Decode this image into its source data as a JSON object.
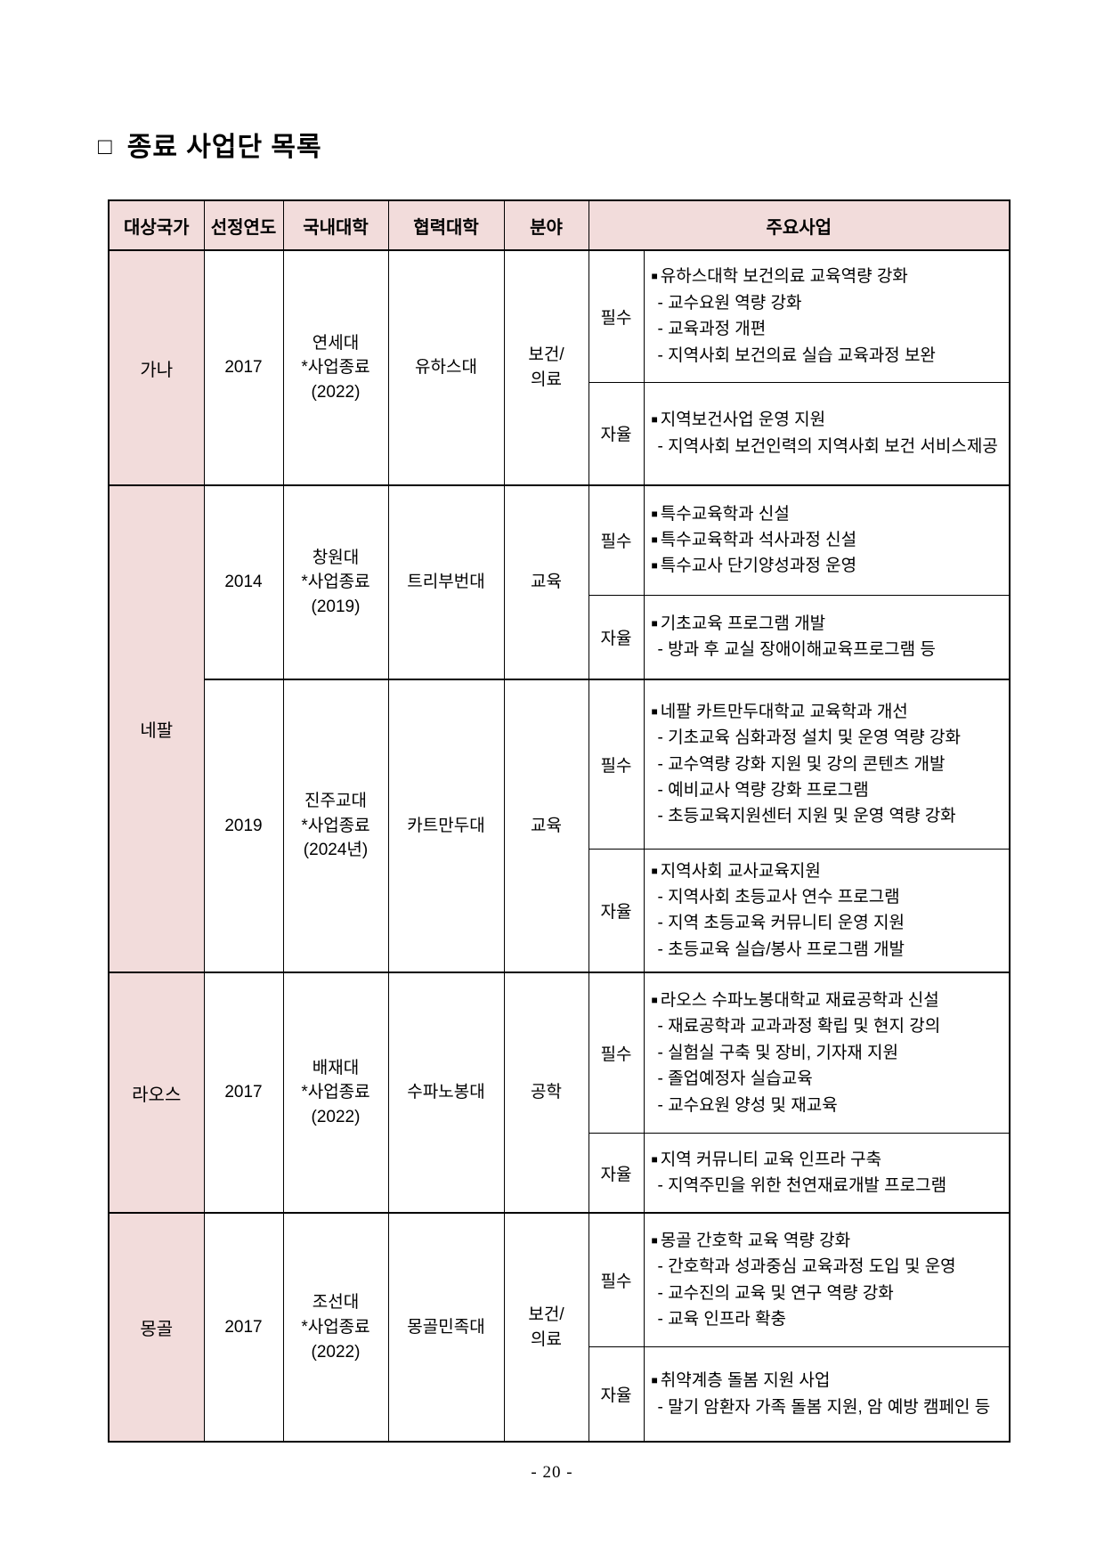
{
  "title": {
    "marker": "□",
    "text": "종료 사업단 목록"
  },
  "footer": {
    "page_number": "- 20 -"
  },
  "colors": {
    "header_bg": "#F2DCDB",
    "border": "#000000"
  },
  "table": {
    "headers": [
      "대상국가",
      "선정연도",
      "국내대학",
      "협력대학",
      "분야",
      "주요사업"
    ],
    "groups": [
      {
        "country": "가나",
        "entries": [
          {
            "year": "2017",
            "domestic_univ_lines": [
              "연세대",
              "*사업종료",
              "(2022)"
            ],
            "partner_univ": "유하스대",
            "field_lines": [
              "보건/",
              "의료"
            ],
            "programs": [
              {
                "type": "필수",
                "lines": [
                  "■유하스대학 보건의료 교육역량 강화",
                  "- 교수요원 역량 강화",
                  "- 교육과정 개편",
                  "- 지역사회 보건의료 실습 교육과정 보완"
                ]
              },
              {
                "type": "자율",
                "lines": [
                  "■지역보건사업 운영 지원",
                  "- 지역사회 보건인력의 지역사회 보건 서비스제공"
                ]
              }
            ]
          }
        ]
      },
      {
        "country": "네팔",
        "entries": [
          {
            "year": "2014",
            "domestic_univ_lines": [
              "창원대",
              "*사업종료",
              "(2019)"
            ],
            "partner_univ": "트리부번대",
            "field_lines": [
              "교육"
            ],
            "programs": [
              {
                "type": "필수",
                "lines": [
                  "■특수교육학과 신설",
                  "■특수교육학과 석사과정 신설",
                  "■특수교사 단기양성과정 운영"
                ]
              },
              {
                "type": "자율",
                "lines": [
                  "■기초교육 프로그램 개발",
                  "- 방과 후 교실 장애이해교육프로그램 등"
                ]
              }
            ]
          },
          {
            "year": "2019",
            "domestic_univ_lines": [
              "진주교대",
              "*사업종료",
              "(2024년)"
            ],
            "partner_univ": "카트만두대",
            "field_lines": [
              "교육"
            ],
            "programs": [
              {
                "type": "필수",
                "lines": [
                  "■네팔 카트만두대학교 교육학과 개선",
                  "- 기초교육 심화과정 설치 및 운영 역량 강화",
                  "- 교수역량 강화 지원 및 강의 콘텐츠 개발",
                  "- 예비교사 역량 강화 프로그램",
                  "- 초등교육지원센터 지원 및 운영 역량 강화"
                ]
              },
              {
                "type": "자율",
                "lines": [
                  "■지역사회 교사교육지원",
                  "- 지역사회 초등교사 연수 프로그램",
                  "- 지역 초등교육 커뮤니티 운영 지원",
                  "- 초등교육 실습/봉사 프로그램 개발"
                ]
              }
            ]
          }
        ]
      },
      {
        "country": "라오스",
        "entries": [
          {
            "year": "2017",
            "domestic_univ_lines": [
              "배재대",
              "*사업종료",
              "(2022)"
            ],
            "partner_univ": "수파노봉대",
            "field_lines": [
              "공학"
            ],
            "programs": [
              {
                "type": "필수",
                "lines": [
                  "■라오스 수파노봉대학교 재료공학과 신설",
                  "- 재료공학과 교과과정 확립 및 현지 강의",
                  "- 실험실 구축 및 장비, 기자재 지원",
                  "- 졸업예정자 실습교육",
                  "- 교수요원 양성 및 재교육"
                ]
              },
              {
                "type": "자율",
                "lines": [
                  "■지역 커뮤니티 교육 인프라 구축",
                  "- 지역주민을 위한 천연재료개발 프로그램"
                ]
              }
            ]
          }
        ]
      },
      {
        "country": "몽골",
        "entries": [
          {
            "year": "2017",
            "domestic_univ_lines": [
              "조선대",
              "*사업종료",
              "(2022)"
            ],
            "partner_univ": "몽골민족대",
            "field_lines": [
              "보건/",
              "의료"
            ],
            "programs": [
              {
                "type": "필수",
                "lines": [
                  "■몽골 간호학 교육 역량 강화",
                  "- 간호학과 성과중심 교육과정 도입 및 운영",
                  "- 교수진의 교육 및 연구 역량 강화",
                  "- 교육 인프라 확충"
                ]
              },
              {
                "type": "자율",
                "lines": [
                  "■취약계층 돌봄 지원 사업",
                  "- 말기 암환자 가족 돌봄 지원, 암 예방 캠페인 등"
                ]
              }
            ]
          }
        ]
      }
    ]
  }
}
